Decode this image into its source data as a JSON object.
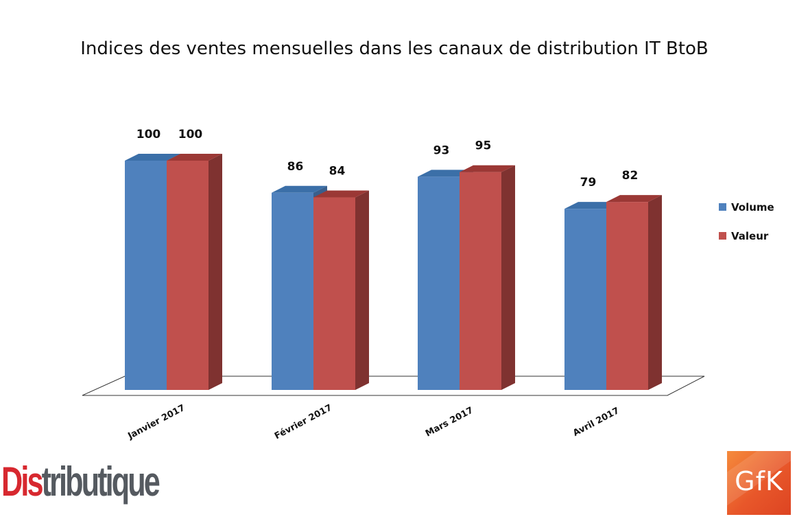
{
  "chart_data": {
    "type": "bar",
    "title": "Indices des ventes mensuelles dans les canaux de distribution IT BtoB",
    "categories": [
      "Janvier 2017",
      "Février 2017",
      "Mars 2017",
      "Avril 2017"
    ],
    "series": [
      {
        "name": "Volume",
        "values": [
          100,
          86,
          93,
          79
        ],
        "color": "#4f81bd",
        "top_color": "#3b6fa8",
        "side_color": "#395f8c"
      },
      {
        "name": "Valeur",
        "values": [
          100,
          84,
          95,
          82
        ],
        "color": "#c0504d",
        "top_color": "#9b3835",
        "side_color": "#7f3230"
      }
    ],
    "ylim": [
      0,
      100
    ],
    "grid": false,
    "legend_position": "right",
    "data_labels": true,
    "three_d": true
  },
  "logos": {
    "left": {
      "part1": "Dis",
      "part2": "tributique"
    },
    "right": {
      "text": "GfK"
    }
  }
}
